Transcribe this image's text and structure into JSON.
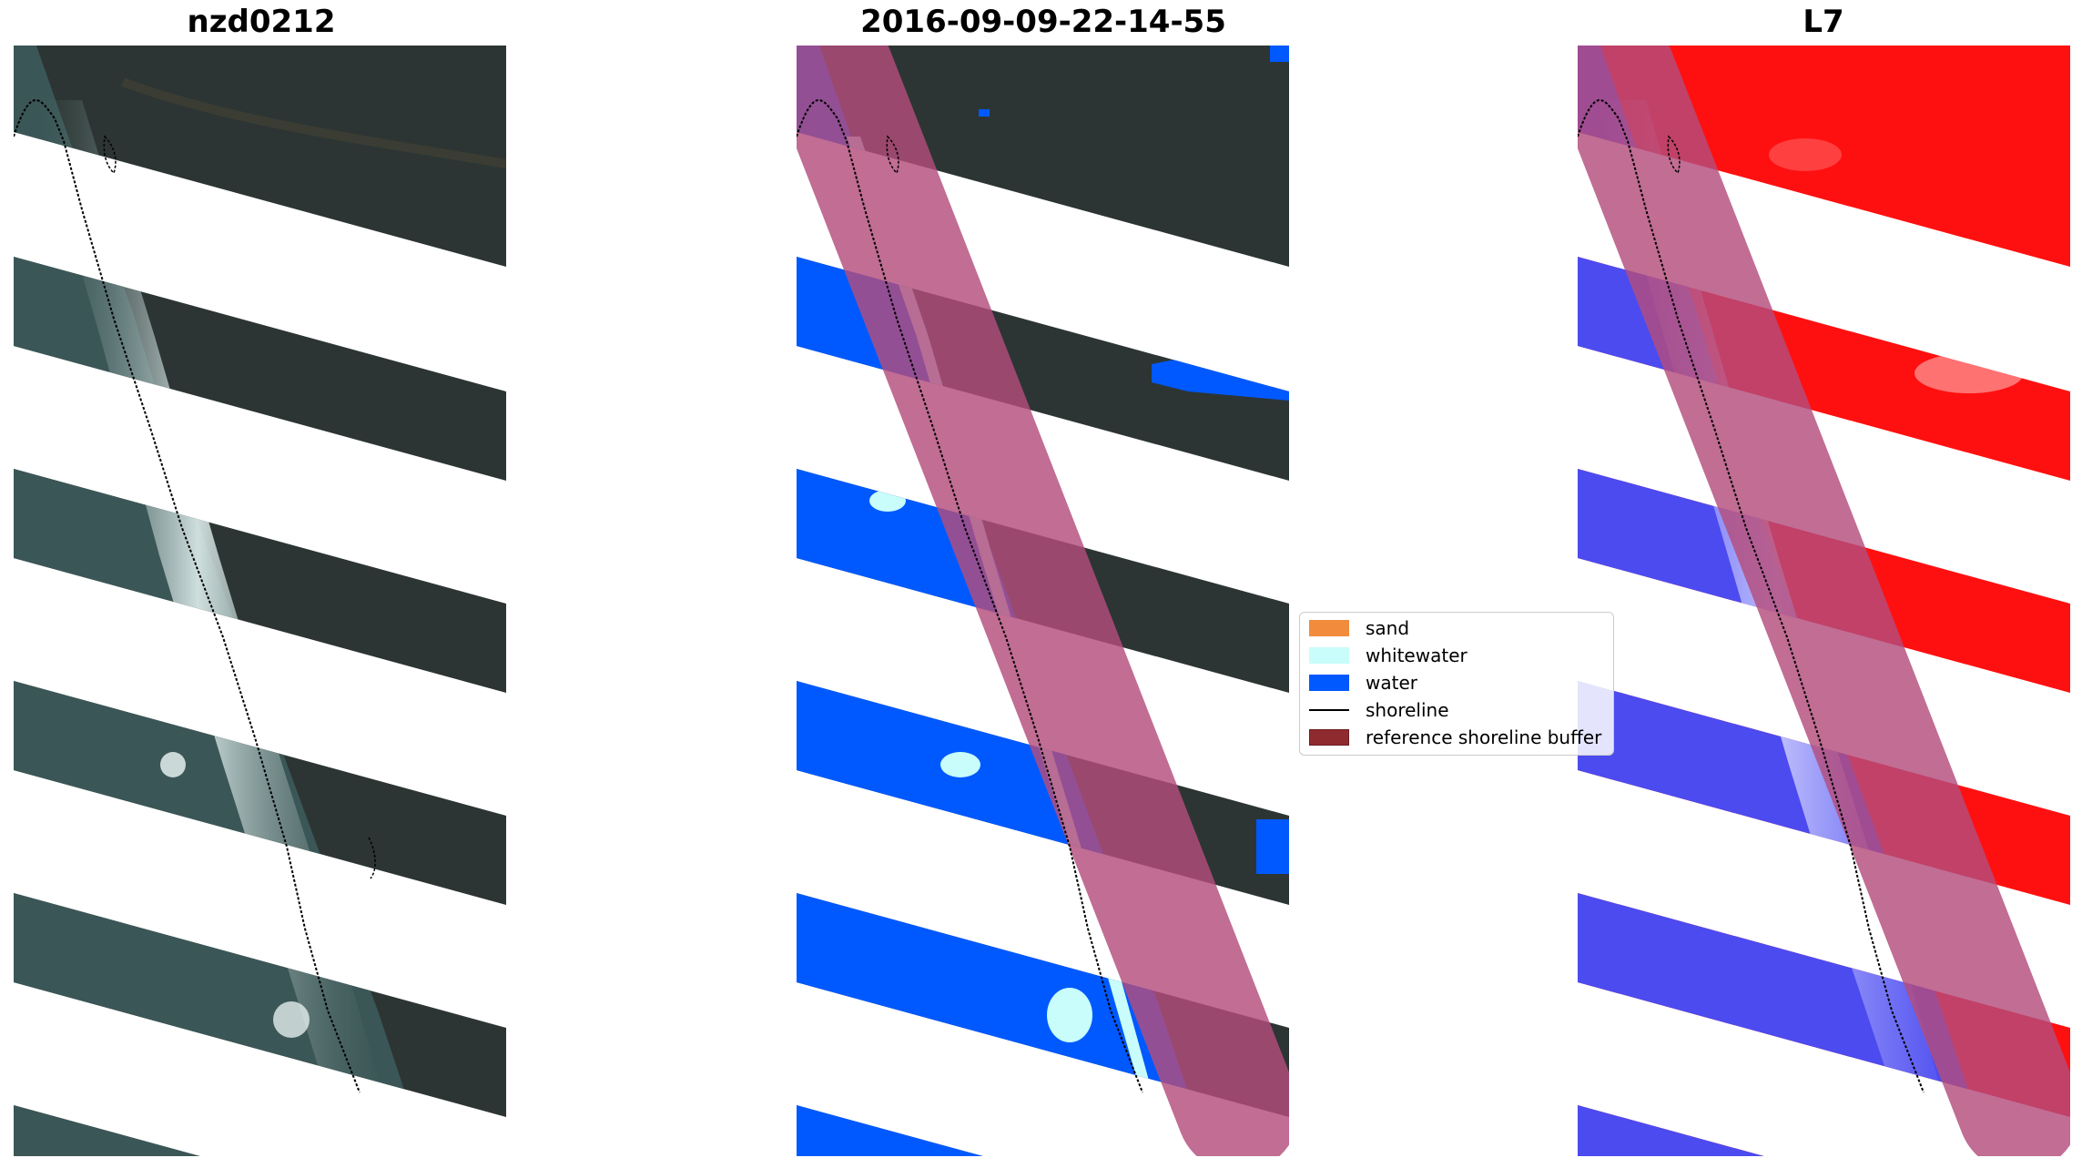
{
  "panels": {
    "rgb": {
      "title": "nzd0212"
    },
    "classification": {
      "title": "2016-09-09-22-14-55"
    },
    "ndwi": {
      "title": "L7"
    }
  },
  "legend": {
    "items": [
      {
        "label": "sand",
        "color": "#f28c3c",
        "kind": "patch"
      },
      {
        "label": "whitewater",
        "color": "#c8fdfb",
        "kind": "patch"
      },
      {
        "label": "water",
        "color": "#0059ff",
        "kind": "patch"
      },
      {
        "label": "shoreline",
        "color": "#000000",
        "kind": "line"
      },
      {
        "label": "reference shoreline buffer",
        "color": "#8f2a2f",
        "kind": "patch"
      }
    ]
  },
  "colors": {
    "land_dark": "#2c3533",
    "sea_rgb": "#3b5656",
    "surf_white": "#d8e6e4",
    "water_class": "#0059ff",
    "whitewater_class": "#c8fdfb",
    "buffer_overlay": "#b34d7d",
    "ndwi_positive": "#ff1010",
    "ndwi_negative": "#4b4bf0",
    "background": "#ffffff"
  }
}
